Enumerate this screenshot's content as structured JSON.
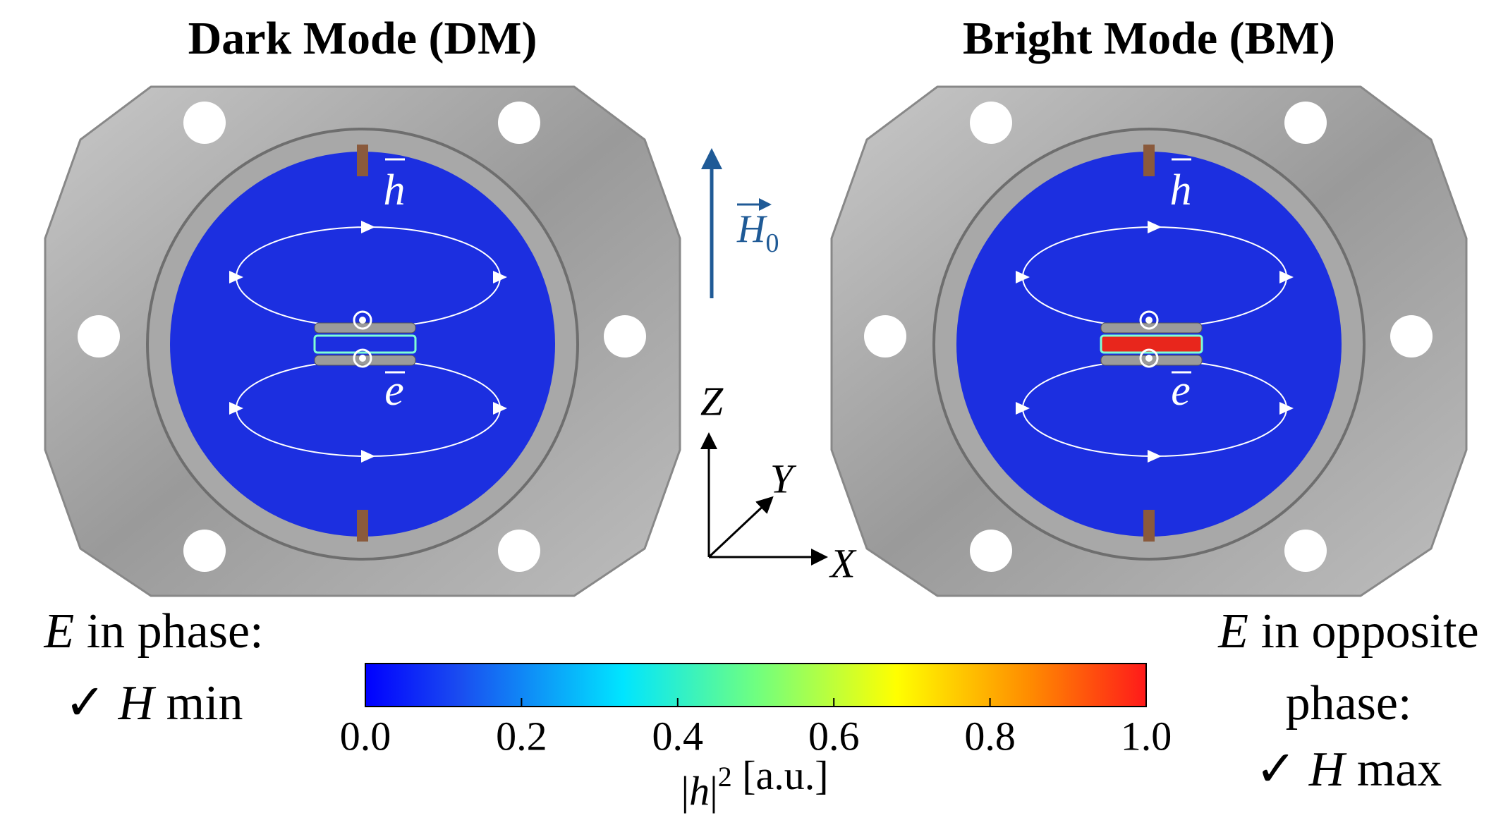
{
  "panels": [
    {
      "title": "Dark Mode (DM)",
      "h_label": "h",
      "e_label": "e",
      "rod_color": "#1c2fe0"
    },
    {
      "title": "Bright Mode (BM)",
      "h_label": "h",
      "e_label": "e",
      "rod_color": "#e8261c"
    }
  ],
  "field": {
    "symbol": "H",
    "subscript": "0"
  },
  "axes": {
    "z": "Z",
    "y": "Y",
    "x": "X"
  },
  "left_note": {
    "lines": [
      [
        {
          "text": "E",
          "italic": true
        },
        {
          "text": " in phase:"
        }
      ],
      [
        {
          "text": "✓  "
        },
        {
          "text": "H",
          "italic": true
        },
        {
          "text": " min"
        }
      ]
    ]
  },
  "right_note": {
    "lines": [
      [
        {
          "text": "E",
          "italic": true
        },
        {
          "text": " in opposite"
        }
      ],
      [
        {
          "text": "phase:"
        }
      ],
      [
        {
          "text": "✓  "
        },
        {
          "text": "H",
          "italic": true
        },
        {
          "text": " max"
        }
      ]
    ]
  },
  "colorbar": {
    "range": [
      0,
      1
    ],
    "ticks": [
      {
        "value": 0,
        "label": "0.0"
      },
      {
        "value": 0.2,
        "label": "0.2"
      },
      {
        "value": 0.4,
        "label": "0.4"
      },
      {
        "value": 0.6,
        "label": "0.6"
      },
      {
        "value": 0.8,
        "label": "0.8"
      },
      {
        "value": 1,
        "label": "1.0"
      }
    ],
    "label": [
      {
        "text": "|"
      },
      {
        "text": "h",
        "italic": true
      },
      {
        "text": "|"
      },
      {
        "text": "2",
        "sup": true
      },
      {
        "text": " [a.u.]"
      }
    ]
  }
}
